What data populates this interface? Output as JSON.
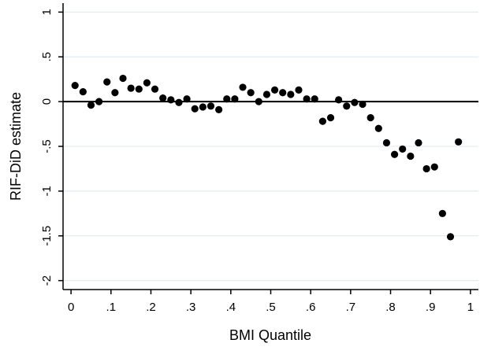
{
  "chart_data": {
    "type": "scatter",
    "xlabel": "BMI Quantile",
    "ylabel": "RIF-DiD estimate",
    "xlim": [
      -0.02,
      1.02
    ],
    "ylim": [
      -2.1,
      1.1
    ],
    "x_ticks": [
      0,
      0.1,
      0.2,
      0.3,
      0.4,
      0.5,
      0.6,
      0.7,
      0.8,
      0.9,
      1
    ],
    "x_tick_labels": [
      "0",
      ".1",
      ".2",
      ".3",
      ".4",
      ".5",
      ".6",
      ".7",
      ".8",
      ".9",
      "1"
    ],
    "y_ticks": [
      1,
      0.5,
      0,
      -0.5,
      -1,
      -1.5,
      -2
    ],
    "y_tick_labels": [
      "1",
      ".5",
      "0",
      "-.5",
      "-1",
      "-1.5",
      "-2"
    ],
    "grid": "horizontal",
    "reference_line_y": 0,
    "colors": {
      "points": "#000000",
      "grid": "#dce8ef",
      "zero_line": "#000000",
      "axis": "#000000"
    },
    "series": [
      {
        "x": [
          0.01,
          0.03,
          0.05,
          0.07,
          0.09,
          0.11,
          0.13,
          0.15,
          0.17,
          0.19,
          0.21,
          0.23,
          0.25,
          0.27,
          0.29,
          0.31,
          0.33,
          0.35,
          0.37,
          0.39,
          0.41,
          0.43,
          0.45,
          0.47,
          0.49,
          0.51,
          0.53,
          0.55,
          0.57,
          0.59,
          0.61,
          0.63,
          0.65,
          0.67,
          0.69,
          0.71,
          0.73,
          0.75,
          0.77,
          0.79,
          0.81,
          0.83,
          0.85,
          0.87,
          0.89,
          0.91,
          0.93,
          0.95,
          0.97
        ],
        "y": [
          0.18,
          0.11,
          -0.04,
          0.0,
          0.22,
          0.1,
          0.26,
          0.15,
          0.14,
          0.21,
          0.14,
          0.04,
          0.02,
          -0.01,
          0.03,
          -0.08,
          -0.06,
          -0.05,
          -0.09,
          0.03,
          0.03,
          0.16,
          0.1,
          0.0,
          0.08,
          0.13,
          0.1,
          0.08,
          0.13,
          0.03,
          0.03,
          -0.22,
          -0.18,
          0.02,
          -0.05,
          -0.01,
          -0.03,
          -0.18,
          -0.3,
          -0.46,
          -0.59,
          -0.53,
          -0.61,
          -0.46,
          -0.75,
          -0.73,
          -1.25,
          -1.51,
          -0.45
        ]
      }
    ]
  }
}
